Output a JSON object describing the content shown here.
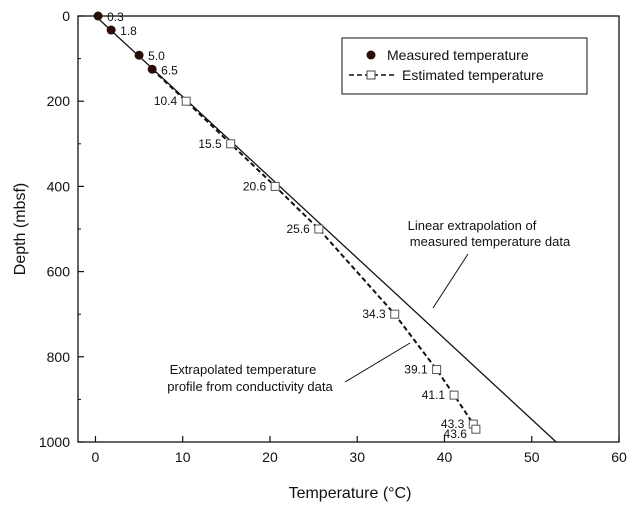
{
  "chart_data": {
    "type": "scatter",
    "xlabel": "Temperature (°C)",
    "ylabel": "Depth (mbsf)",
    "xlim": [
      -2,
      60
    ],
    "ylim": [
      1000,
      0
    ],
    "x_ticks": [
      0,
      10,
      20,
      30,
      40,
      50,
      60
    ],
    "y_ticks": [
      0,
      200,
      400,
      600,
      800,
      1000
    ],
    "grid": false,
    "legend_position": "top-right",
    "series": [
      {
        "name": "Measured temperature",
        "style": "filled-circle",
        "points": [
          {
            "x": 0.3,
            "y": 0,
            "label": "0.3"
          },
          {
            "x": 1.8,
            "y": 33,
            "label": "1.8"
          },
          {
            "x": 5.0,
            "y": 92,
            "label": "5.0"
          },
          {
            "x": 6.5,
            "y": 125,
            "label": "6.5"
          }
        ]
      },
      {
        "name": "Estimated temperature",
        "style": "open-square-dashed-line",
        "points": [
          {
            "x": 10.4,
            "y": 200,
            "label": "10.4"
          },
          {
            "x": 15.5,
            "y": 300,
            "label": "15.5"
          },
          {
            "x": 20.6,
            "y": 400,
            "label": "20.6"
          },
          {
            "x": 25.6,
            "y": 500,
            "label": "25.6"
          },
          {
            "x": 34.3,
            "y": 700,
            "label": "34.3"
          },
          {
            "x": 39.1,
            "y": 830,
            "label": "39.1"
          },
          {
            "x": 41.1,
            "y": 890,
            "label": "41.1"
          },
          {
            "x": 43.3,
            "y": 958,
            "label": "43.3"
          },
          {
            "x": 43.6,
            "y": 970,
            "label": "43.6"
          }
        ]
      }
    ],
    "linear_fit": {
      "start": {
        "x": 0,
        "y": 0
      },
      "end": {
        "x": 52.8,
        "y": 1000
      }
    },
    "annotations": [
      {
        "lines": [
          "Linear extrapolation of",
          "measured temperature data"
        ]
      },
      {
        "lines": [
          "Extrapolated temperature",
          "profile from conductivity data"
        ]
      }
    ]
  }
}
